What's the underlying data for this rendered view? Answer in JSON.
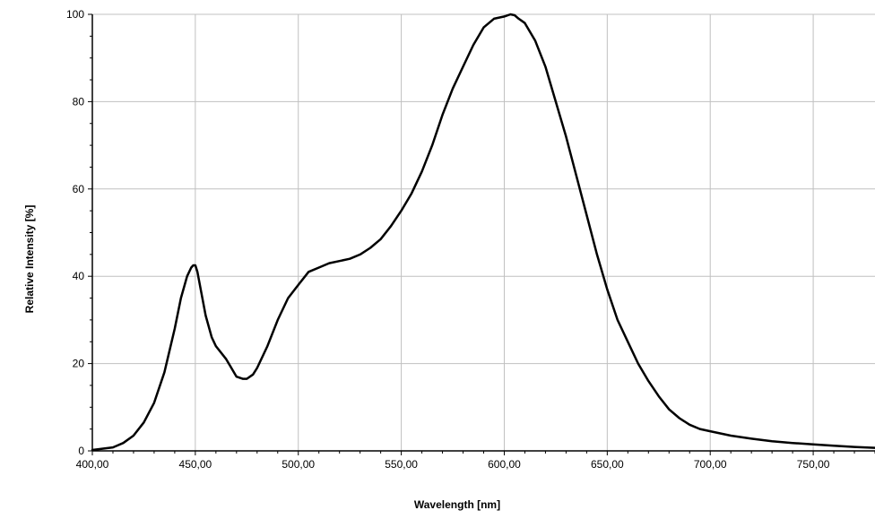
{
  "chart_data": {
    "type": "line",
    "title": "",
    "xlabel": "Wavelength [nm]",
    "ylabel": "Relative Intensity [%]",
    "xlim": [
      400,
      780
    ],
    "ylim": [
      0,
      100
    ],
    "x_ticks": [
      400,
      450,
      500,
      550,
      600,
      650,
      700,
      750
    ],
    "x_tick_labels": [
      "400,00",
      "450,00",
      "500,00",
      "550,00",
      "600,00",
      "650,00",
      "700,00",
      "750,00"
    ],
    "y_ticks": [
      0,
      20,
      40,
      60,
      80,
      100
    ],
    "y_tick_labels": [
      "0",
      "20",
      "40",
      "60",
      "80",
      "100"
    ],
    "grid": true,
    "legend": "none",
    "line_color": "#000000",
    "series": [
      {
        "x": [
          400,
          410,
          415,
          420,
          425,
          430,
          435,
          440,
          443,
          446,
          448,
          449,
          450,
          451,
          453,
          455,
          458,
          460,
          465,
          470,
          473,
          475,
          478,
          480,
          485,
          490,
          495,
          500,
          505,
          510,
          515,
          520,
          525,
          530,
          535,
          540,
          545,
          550,
          555,
          560,
          565,
          570,
          575,
          580,
          585,
          590,
          595,
          600,
          603,
          605,
          607,
          610,
          615,
          620,
          625,
          630,
          635,
          640,
          645,
          650,
          655,
          660,
          665,
          670,
          675,
          680,
          685,
          690,
          695,
          700,
          710,
          720,
          730,
          740,
          750,
          760,
          770,
          780
        ],
        "y": [
          0.2,
          0.8,
          1.8,
          3.5,
          6.5,
          11,
          18,
          28,
          35,
          40,
          42,
          42.5,
          42.5,
          41,
          36,
          31,
          26,
          24,
          21,
          17,
          16.5,
          16.5,
          17.5,
          19,
          24,
          30,
          35,
          38,
          41,
          42,
          43,
          43.5,
          44,
          45,
          46.5,
          48.5,
          51.5,
          55,
          59,
          64,
          70,
          77,
          83,
          88,
          93,
          97,
          99,
          99.5,
          100,
          99.8,
          99,
          98,
          94,
          88,
          80,
          72,
          63,
          54,
          45,
          37,
          30,
          25,
          20,
          16,
          12.5,
          9.5,
          7.5,
          6,
          5,
          4.5,
          3.5,
          2.8,
          2.2,
          1.8,
          1.5,
          1.2,
          0.9,
          0.7
        ]
      }
    ]
  }
}
